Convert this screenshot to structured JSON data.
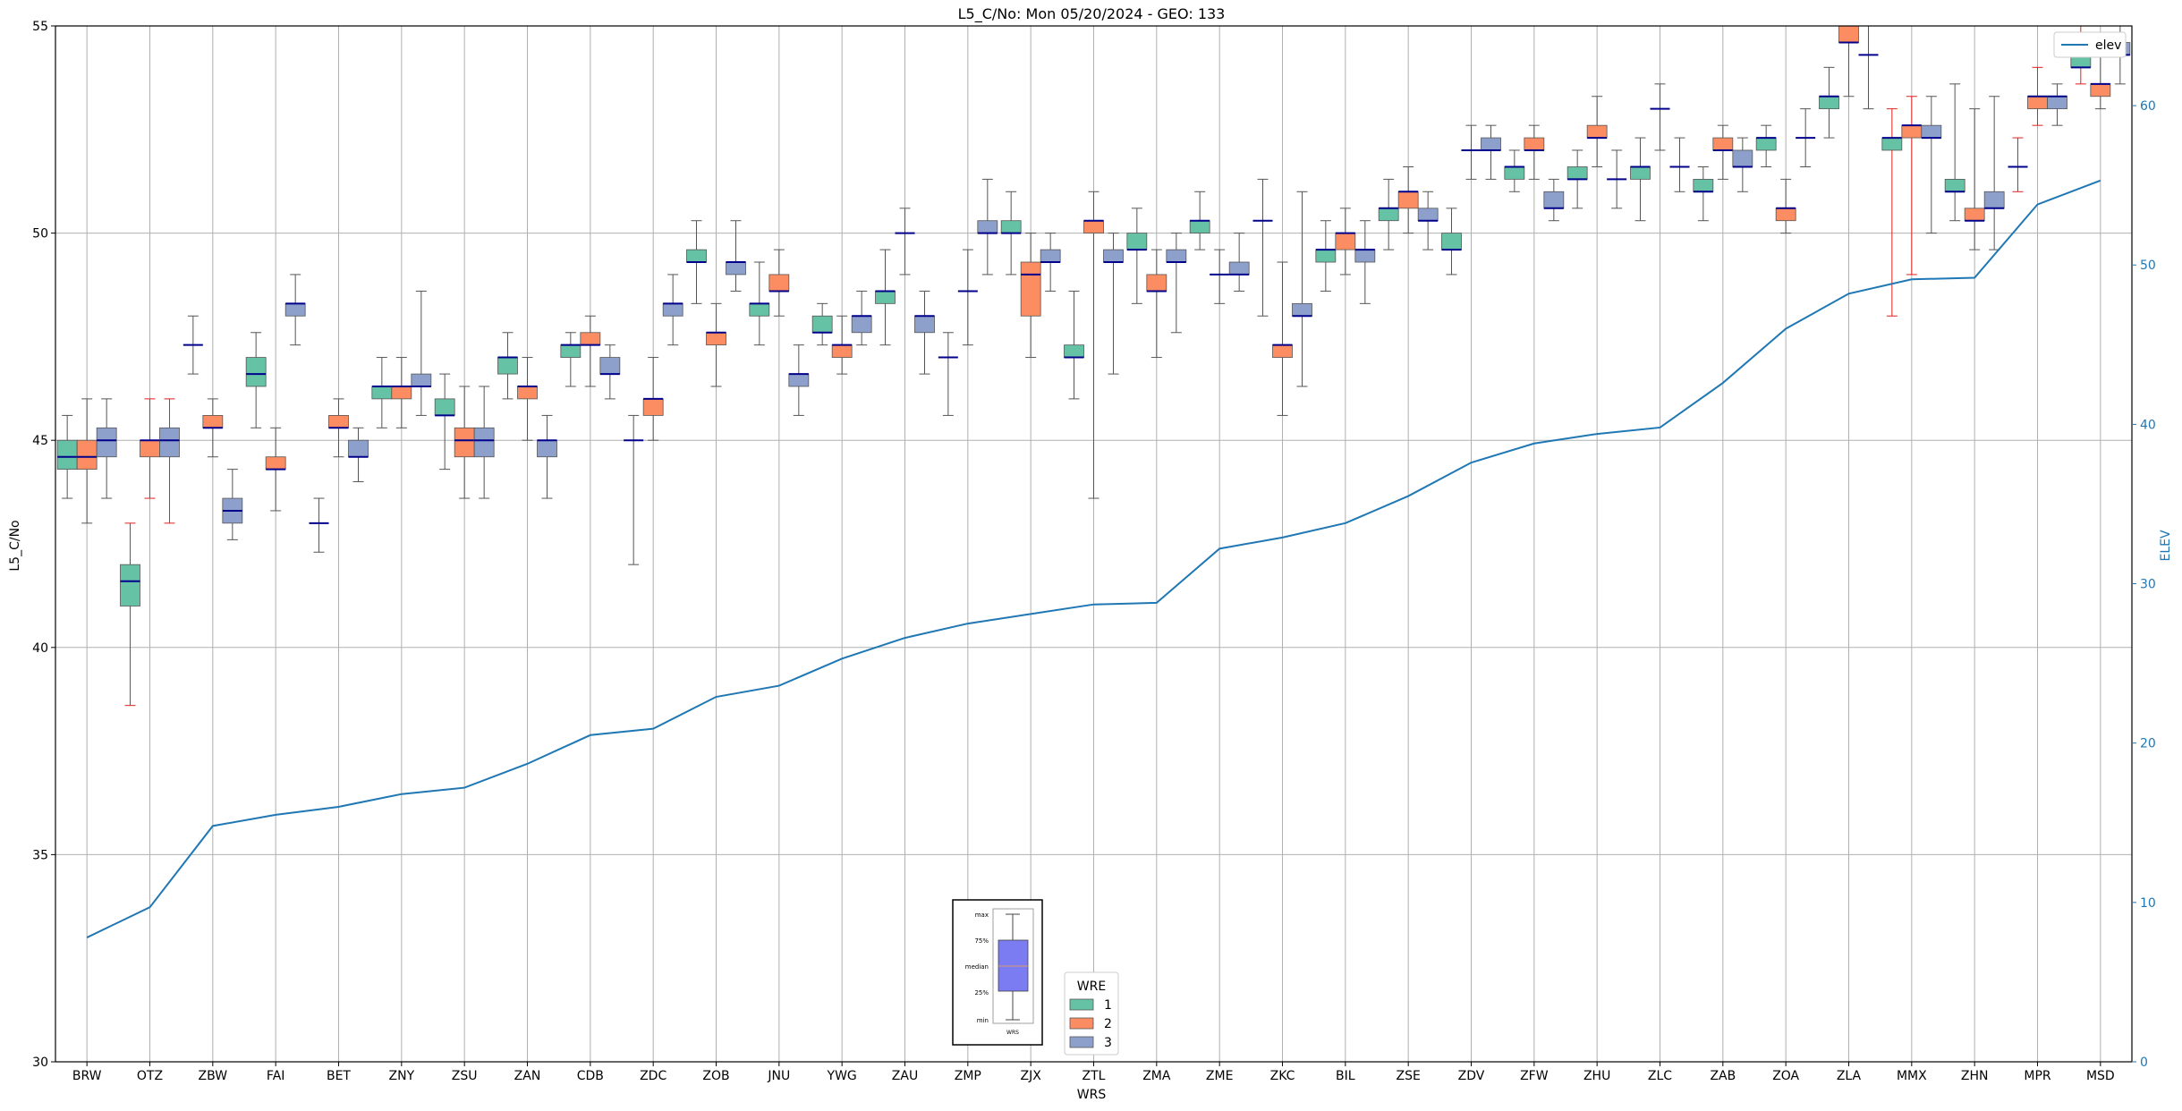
{
  "chart_data": {
    "type": "box",
    "title": "L5_C/No: Mon 05/20/2024 - GEO: 133",
    "xlabel": "WRS",
    "ylabel": "L5_C/No",
    "ylabel_right": "ELEV",
    "ylim": [
      30,
      55
    ],
    "ylim_right": [
      0,
      65
    ],
    "yticks": [
      30,
      35,
      40,
      45,
      50,
      55
    ],
    "yticks_right": [
      0,
      10,
      20,
      30,
      40,
      50,
      60
    ],
    "grid": true,
    "categories": [
      "BRW",
      "OTZ",
      "ZBW",
      "FAI",
      "BET",
      "ZNY",
      "ZSU",
      "ZAN",
      "CDB",
      "ZDC",
      "ZOB",
      "JNU",
      "YWG",
      "ZAU",
      "ZMP",
      "ZJX",
      "ZTL",
      "ZMA",
      "ZME",
      "ZKC",
      "BIL",
      "ZSE",
      "ZDV",
      "ZFW",
      "ZHU",
      "ZLC",
      "ZAB",
      "ZOA",
      "ZLA",
      "MMX",
      "ZHN",
      "MPR",
      "MSD"
    ],
    "colors": {
      "wre1": "#66c2a5",
      "wre2": "#fc8d62",
      "wre3": "#8da0cb",
      "median": "#00008b",
      "whisker": "#555555",
      "whisker_alt": "#e02020",
      "elev_line": "#1f77b4",
      "grid": "#b0b0b0"
    },
    "wre_legend": {
      "title": "WRE",
      "items": [
        "1",
        "2",
        "3"
      ]
    },
    "elev_legend_label": "elev",
    "box_key": {
      "max": "max",
      "q3": "75%",
      "median": "median",
      "q1": "25%",
      "min": "min",
      "xlabel": "WRS"
    },
    "elev": [
      7.8,
      9.7,
      14.8,
      15.5,
      16.0,
      16.8,
      17.2,
      18.7,
      20.5,
      20.9,
      22.9,
      23.6,
      25.3,
      26.6,
      27.5,
      28.1,
      28.7,
      28.8,
      32.2,
      32.9,
      33.8,
      35.5,
      37.6,
      38.8,
      39.4,
      39.8,
      42.6,
      46.0,
      48.2,
      49.1,
      49.2,
      53.8,
      55.3
    ],
    "series": [
      {
        "name": "1",
        "boxes": [
          {
            "cat": 0,
            "min": 43.6,
            "q1": 44.3,
            "median": 44.6,
            "q3": 45.0,
            "max": 45.6
          },
          {
            "cat": 1,
            "min": 38.6,
            "q1": 41.0,
            "median": 41.6,
            "q3": 42.0,
            "max": 43.0,
            "red": true
          },
          {
            "cat": 2,
            "min": 46.6,
            "q1": 47.3,
            "median": 47.3,
            "q3": 47.3,
            "max": 48.0
          },
          {
            "cat": 3,
            "min": 45.3,
            "q1": 46.3,
            "median": 46.6,
            "q3": 47.0,
            "max": 47.6
          },
          {
            "cat": 4,
            "min": 42.3,
            "q1": 43.0,
            "median": 43.0,
            "q3": 43.0,
            "max": 43.6
          },
          {
            "cat": 5,
            "min": 45.3,
            "q1": 46.0,
            "median": 46.3,
            "q3": 46.3,
            "max": 47.0
          },
          {
            "cat": 6,
            "min": 44.3,
            "q1": 45.6,
            "median": 45.6,
            "q3": 46.0,
            "max": 46.6
          },
          {
            "cat": 7,
            "min": 46.0,
            "q1": 46.6,
            "median": 47.0,
            "q3": 47.0,
            "max": 47.6
          },
          {
            "cat": 8,
            "min": 46.3,
            "q1": 47.0,
            "median": 47.3,
            "q3": 47.3,
            "max": 47.6
          },
          {
            "cat": 9,
            "min": 42.0,
            "q1": 45.0,
            "median": 45.0,
            "q3": 45.0,
            "max": 45.6
          },
          {
            "cat": 10,
            "min": 48.3,
            "q1": 49.3,
            "median": 49.3,
            "q3": 49.6,
            "max": 50.3
          },
          {
            "cat": 11,
            "min": 47.3,
            "q1": 48.0,
            "median": 48.3,
            "q3": 48.3,
            "max": 49.3
          },
          {
            "cat": 12,
            "min": 47.3,
            "q1": 47.6,
            "median": 47.6,
            "q3": 48.0,
            "max": 48.3
          },
          {
            "cat": 13,
            "min": 47.3,
            "q1": 48.3,
            "median": 48.6,
            "q3": 48.6,
            "max": 49.6
          },
          {
            "cat": 14,
            "min": 45.6,
            "q1": 47.0,
            "median": 47.0,
            "q3": 47.0,
            "max": 47.6
          },
          {
            "cat": 15,
            "min": 49.0,
            "q1": 50.0,
            "median": 50.0,
            "q3": 50.3,
            "max": 51.0
          },
          {
            "cat": 16,
            "min": 46.0,
            "q1": 47.0,
            "median": 47.0,
            "q3": 47.3,
            "max": 48.6
          },
          {
            "cat": 17,
            "min": 48.3,
            "q1": 49.6,
            "median": 49.6,
            "q3": 50.0,
            "max": 50.6
          },
          {
            "cat": 18,
            "min": 49.6,
            "q1": 50.0,
            "median": 50.3,
            "q3": 50.3,
            "max": 51.0
          },
          {
            "cat": 19,
            "min": 48.0,
            "q1": 50.3,
            "median": 50.3,
            "q3": 50.3,
            "max": 51.3
          },
          {
            "cat": 20,
            "min": 48.6,
            "q1": 49.3,
            "median": 49.6,
            "q3": 49.6,
            "max": 50.3
          },
          {
            "cat": 21,
            "min": 49.6,
            "q1": 50.3,
            "median": 50.6,
            "q3": 50.6,
            "max": 51.3
          },
          {
            "cat": 22,
            "min": 49.0,
            "q1": 49.6,
            "median": 49.6,
            "q3": 50.0,
            "max": 50.6
          },
          {
            "cat": 23,
            "min": 51.0,
            "q1": 51.3,
            "median": 51.6,
            "q3": 51.6,
            "max": 52.0
          },
          {
            "cat": 24,
            "min": 50.6,
            "q1": 51.3,
            "median": 51.3,
            "q3": 51.6,
            "max": 52.0
          },
          {
            "cat": 25,
            "min": 50.3,
            "q1": 51.3,
            "median": 51.6,
            "q3": 51.6,
            "max": 52.3
          },
          {
            "cat": 26,
            "min": 50.3,
            "q1": 51.0,
            "median": 51.0,
            "q3": 51.3,
            "max": 51.6
          },
          {
            "cat": 27,
            "min": 51.6,
            "q1": 52.0,
            "median": 52.3,
            "q3": 52.3,
            "max": 52.6
          },
          {
            "cat": 28,
            "min": 52.3,
            "q1": 53.0,
            "median": 53.3,
            "q3": 53.3,
            "max": 54.0
          },
          {
            "cat": 29,
            "min": 48.0,
            "q1": 52.0,
            "median": 52.3,
            "q3": 52.3,
            "max": 53.0,
            "red": true
          },
          {
            "cat": 30,
            "min": 50.3,
            "q1": 51.0,
            "median": 51.0,
            "q3": 51.3,
            "max": 53.6
          },
          {
            "cat": 31,
            "min": 51.0,
            "q1": 51.6,
            "median": 51.6,
            "q3": 51.6,
            "max": 52.3,
            "red": true
          },
          {
            "cat": 32,
            "min": 53.6,
            "q1": 54.0,
            "median": 54.0,
            "q3": 54.3,
            "max": 55.0,
            "red": true
          }
        ]
      },
      {
        "name": "2",
        "boxes": [
          {
            "cat": 0,
            "min": 43.0,
            "q1": 44.3,
            "median": 44.6,
            "q3": 45.0,
            "max": 46.0
          },
          {
            "cat": 1,
            "min": 43.6,
            "q1": 44.6,
            "median": 45.0,
            "q3": 45.0,
            "max": 46.0,
            "red": true
          },
          {
            "cat": 2,
            "min": 44.6,
            "q1": 45.3,
            "median": 45.3,
            "q3": 45.6,
            "max": 46.0
          },
          {
            "cat": 3,
            "min": 43.3,
            "q1": 44.3,
            "median": 44.3,
            "q3": 44.6,
            "max": 45.3
          },
          {
            "cat": 4,
            "min": 44.6,
            "q1": 45.3,
            "median": 45.3,
            "q3": 45.6,
            "max": 46.0
          },
          {
            "cat": 5,
            "min": 45.3,
            "q1": 46.0,
            "median": 46.3,
            "q3": 46.3,
            "max": 47.0
          },
          {
            "cat": 6,
            "min": 43.6,
            "q1": 44.6,
            "median": 45.0,
            "q3": 45.3,
            "max": 46.3
          },
          {
            "cat": 7,
            "min": 45.0,
            "q1": 46.0,
            "median": 46.3,
            "q3": 46.3,
            "max": 47.0
          },
          {
            "cat": 8,
            "min": 46.3,
            "q1": 47.3,
            "median": 47.3,
            "q3": 47.6,
            "max": 48.0
          },
          {
            "cat": 9,
            "min": 45.0,
            "q1": 45.6,
            "median": 46.0,
            "q3": 46.0,
            "max": 47.0
          },
          {
            "cat": 10,
            "min": 46.3,
            "q1": 47.3,
            "median": 47.6,
            "q3": 47.6,
            "max": 48.3
          },
          {
            "cat": 11,
            "min": 48.0,
            "q1": 48.6,
            "median": 48.6,
            "q3": 49.0,
            "max": 49.6
          },
          {
            "cat": 12,
            "min": 46.6,
            "q1": 47.0,
            "median": 47.3,
            "q3": 47.3,
            "max": 48.0
          },
          {
            "cat": 13,
            "min": 49.0,
            "q1": 50.0,
            "median": 50.0,
            "q3": 50.0,
            "max": 50.6
          },
          {
            "cat": 14,
            "min": 47.3,
            "q1": 48.6,
            "median": 48.6,
            "q3": 48.6,
            "max": 49.6
          },
          {
            "cat": 15,
            "min": 47.0,
            "q1": 48.0,
            "median": 49.0,
            "q3": 49.3,
            "max": 50.0
          },
          {
            "cat": 16,
            "min": 43.6,
            "q1": 50.0,
            "median": 50.3,
            "q3": 50.3,
            "max": 51.0
          },
          {
            "cat": 17,
            "min": 47.0,
            "q1": 48.6,
            "median": 48.6,
            "q3": 49.0,
            "max": 49.6
          },
          {
            "cat": 18,
            "min": 48.3,
            "q1": 49.0,
            "median": 49.0,
            "q3": 49.0,
            "max": 49.6
          },
          {
            "cat": 19,
            "min": 45.6,
            "q1": 47.0,
            "median": 47.3,
            "q3": 47.3,
            "max": 49.3
          },
          {
            "cat": 20,
            "min": 49.0,
            "q1": 49.6,
            "median": 50.0,
            "q3": 50.0,
            "max": 50.6
          },
          {
            "cat": 21,
            "min": 50.0,
            "q1": 50.6,
            "median": 51.0,
            "q3": 51.0,
            "max": 51.6
          },
          {
            "cat": 22,
            "min": 51.3,
            "q1": 52.0,
            "median": 52.0,
            "q3": 52.0,
            "max": 52.6
          },
          {
            "cat": 23,
            "min": 51.3,
            "q1": 52.0,
            "median": 52.0,
            "q3": 52.3,
            "max": 52.6
          },
          {
            "cat": 24,
            "min": 51.6,
            "q1": 52.3,
            "median": 52.3,
            "q3": 52.6,
            "max": 53.3
          },
          {
            "cat": 25,
            "min": 52.0,
            "q1": 53.0,
            "median": 53.0,
            "q3": 53.0,
            "max": 53.6
          },
          {
            "cat": 26,
            "min": 51.3,
            "q1": 52.0,
            "median": 52.0,
            "q3": 52.3,
            "max": 52.6
          },
          {
            "cat": 27,
            "min": 50.0,
            "q1": 50.3,
            "median": 50.6,
            "q3": 50.6,
            "max": 51.3
          },
          {
            "cat": 28,
            "min": 53.3,
            "q1": 54.6,
            "median": 54.6,
            "q3": 55.0,
            "max": 55.0
          },
          {
            "cat": 29,
            "min": 49.0,
            "q1": 52.3,
            "median": 52.6,
            "q3": 52.6,
            "max": 53.3,
            "red": true
          },
          {
            "cat": 30,
            "min": 49.6,
            "q1": 50.3,
            "median": 50.3,
            "q3": 50.6,
            "max": 53.0
          },
          {
            "cat": 31,
            "min": 52.6,
            "q1": 53.0,
            "median": 53.3,
            "q3": 53.3,
            "max": 54.0,
            "red": true
          },
          {
            "cat": 32,
            "min": 53.0,
            "q1": 53.3,
            "median": 53.6,
            "q3": 53.6,
            "max": 54.3
          }
        ]
      },
      {
        "name": "3",
        "boxes": [
          {
            "cat": 0,
            "min": 43.6,
            "q1": 44.6,
            "median": 45.0,
            "q3": 45.3,
            "max": 46.0
          },
          {
            "cat": 1,
            "min": 43.0,
            "q1": 44.6,
            "median": 45.0,
            "q3": 45.3,
            "max": 46.0,
            "red": true
          },
          {
            "cat": 2,
            "min": 42.6,
            "q1": 43.0,
            "median": 43.3,
            "q3": 43.6,
            "max": 44.3
          },
          {
            "cat": 3,
            "min": 47.3,
            "q1": 48.0,
            "median": 48.3,
            "q3": 48.3,
            "max": 49.0
          },
          {
            "cat": 4,
            "min": 44.0,
            "q1": 44.6,
            "median": 44.6,
            "q3": 45.0,
            "max": 45.3
          },
          {
            "cat": 5,
            "min": 45.6,
            "q1": 46.3,
            "median": 46.3,
            "q3": 46.6,
            "max": 48.6
          },
          {
            "cat": 6,
            "min": 43.6,
            "q1": 44.6,
            "median": 45.0,
            "q3": 45.3,
            "max": 46.3
          },
          {
            "cat": 7,
            "min": 43.6,
            "q1": 44.6,
            "median": 45.0,
            "q3": 45.0,
            "max": 45.6
          },
          {
            "cat": 8,
            "min": 46.0,
            "q1": 46.6,
            "median": 46.6,
            "q3": 47.0,
            "max": 47.3
          },
          {
            "cat": 9,
            "min": 47.3,
            "q1": 48.0,
            "median": 48.3,
            "q3": 48.3,
            "max": 49.0
          },
          {
            "cat": 10,
            "min": 48.6,
            "q1": 49.0,
            "median": 49.3,
            "q3": 49.3,
            "max": 50.3
          },
          {
            "cat": 11,
            "min": 45.6,
            "q1": 46.3,
            "median": 46.6,
            "q3": 46.6,
            "max": 47.3
          },
          {
            "cat": 12,
            "min": 47.3,
            "q1": 47.6,
            "median": 48.0,
            "q3": 48.0,
            "max": 48.6
          },
          {
            "cat": 13,
            "min": 46.6,
            "q1": 47.6,
            "median": 48.0,
            "q3": 48.0,
            "max": 48.6
          },
          {
            "cat": 14,
            "min": 49.0,
            "q1": 50.0,
            "median": 50.0,
            "q3": 50.3,
            "max": 51.3
          },
          {
            "cat": 15,
            "min": 48.6,
            "q1": 49.3,
            "median": 49.3,
            "q3": 49.6,
            "max": 50.0
          },
          {
            "cat": 16,
            "min": 46.6,
            "q1": 49.3,
            "median": 49.3,
            "q3": 49.6,
            "max": 50.0
          },
          {
            "cat": 17,
            "min": 47.6,
            "q1": 49.3,
            "median": 49.3,
            "q3": 49.6,
            "max": 50.0
          },
          {
            "cat": 18,
            "min": 48.6,
            "q1": 49.0,
            "median": 49.0,
            "q3": 49.3,
            "max": 50.0
          },
          {
            "cat": 19,
            "min": 46.3,
            "q1": 48.0,
            "median": 48.0,
            "q3": 48.3,
            "max": 51.0
          },
          {
            "cat": 20,
            "min": 48.3,
            "q1": 49.3,
            "median": 49.6,
            "q3": 49.6,
            "max": 50.3
          },
          {
            "cat": 21,
            "min": 49.6,
            "q1": 50.3,
            "median": 50.3,
            "q3": 50.6,
            "max": 51.0
          },
          {
            "cat": 22,
            "min": 51.3,
            "q1": 52.0,
            "median": 52.0,
            "q3": 52.3,
            "max": 52.6
          },
          {
            "cat": 23,
            "min": 50.3,
            "q1": 50.6,
            "median": 50.6,
            "q3": 51.0,
            "max": 51.3
          },
          {
            "cat": 24,
            "min": 50.6,
            "q1": 51.3,
            "median": 51.3,
            "q3": 51.3,
            "max": 52.0
          },
          {
            "cat": 25,
            "min": 51.0,
            "q1": 51.6,
            "median": 51.6,
            "q3": 51.6,
            "max": 52.3
          },
          {
            "cat": 26,
            "min": 51.0,
            "q1": 51.6,
            "median": 51.6,
            "q3": 52.0,
            "max": 52.3
          },
          {
            "cat": 27,
            "min": 51.6,
            "q1": 52.3,
            "median": 52.3,
            "q3": 52.3,
            "max": 53.0
          },
          {
            "cat": 28,
            "min": 53.0,
            "q1": 54.3,
            "median": 54.3,
            "q3": 54.3,
            "max": 55.0
          },
          {
            "cat": 29,
            "min": 50.0,
            "q1": 52.3,
            "median": 52.3,
            "q3": 52.6,
            "max": 53.3
          },
          {
            "cat": 30,
            "min": 49.6,
            "q1": 50.6,
            "median": 50.6,
            "q3": 51.0,
            "max": 53.3
          },
          {
            "cat": 31,
            "min": 52.6,
            "q1": 53.0,
            "median": 53.3,
            "q3": 53.3,
            "max": 53.6
          },
          {
            "cat": 32,
            "min": 53.6,
            "q1": 54.3,
            "median": 54.3,
            "q3": 54.6,
            "max": 55.0
          }
        ]
      }
    ]
  }
}
